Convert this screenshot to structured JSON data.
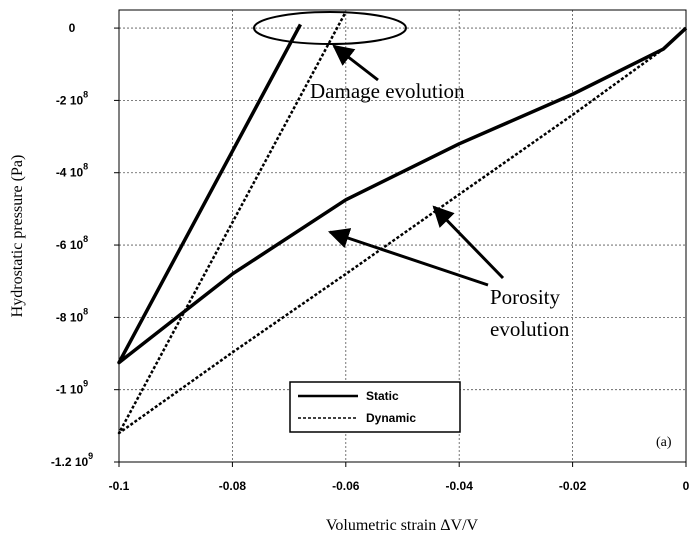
{
  "chart_data": {
    "type": "line",
    "x_label": "Volumetric strain ΔV/V",
    "y_label": "Hydrostatic pressure (Pa)",
    "xlim": [
      -0.1,
      0
    ],
    "ylim": [
      -1200000000,
      50000000
    ],
    "xticks": [
      -0.1,
      -0.08,
      -0.06,
      -0.04,
      -0.02,
      0
    ],
    "yticks": [
      0,
      {
        "value": -200000000,
        "label": "-2 10",
        "exponent": "8"
      },
      {
        "value": -400000000,
        "label": "-4 10",
        "exponent": "8"
      },
      {
        "value": -600000000,
        "label": "-6 10",
        "exponent": "8"
      },
      {
        "value": -800000000,
        "label": "-8 10",
        "exponent": "8"
      },
      {
        "value": -1000000000,
        "label": "-1 10",
        "exponent": "9"
      },
      {
        "value": -1200000000,
        "label": "-1.2 10",
        "exponent": "9"
      }
    ],
    "grid": true,
    "series": [
      {
        "name": "Static",
        "color": "#000000",
        "dash": false,
        "x": [
          0,
          -0.004,
          -0.02,
          -0.04,
          -0.06,
          -0.08,
          -0.1,
          -0.068
        ],
        "values": [
          0,
          -58000000,
          -183000000,
          -320000000,
          -475000000,
          -680000000,
          -925000000,
          10000000
        ]
      },
      {
        "name": "Dynamic",
        "color": "#000000",
        "dash": true,
        "x": [
          0,
          -0.004,
          -0.02,
          -0.04,
          -0.06,
          -0.08,
          -0.1,
          -0.06
        ],
        "values": [
          0,
          -58000000,
          -240000000,
          -460000000,
          -680000000,
          -897000000,
          -1120000000,
          45000000
        ]
      }
    ],
    "annotations": [
      "Damage evolution",
      "Porosity",
      "evolution",
      "(a)"
    ]
  }
}
